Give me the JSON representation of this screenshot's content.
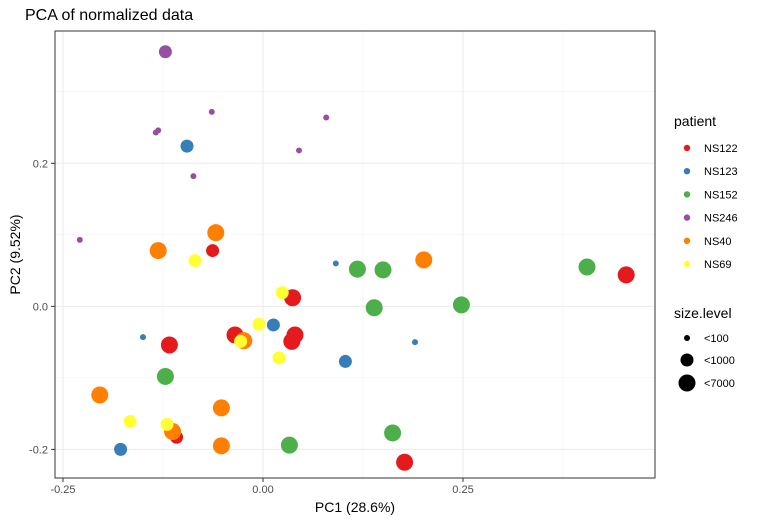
{
  "chart_data": {
    "type": "scatter",
    "title": "PCA of normalized data",
    "xlabel": "PC1 (28.6%)",
    "ylabel": "PC2 (9.52%)",
    "xlim": [
      -0.26,
      0.49
    ],
    "ylim": [
      -0.24,
      0.385
    ],
    "x_ticks": [
      -0.25,
      0.0,
      0.25
    ],
    "x_tick_labels": [
      "-0.25",
      "0.00",
      "0.25"
    ],
    "y_ticks": [
      -0.2,
      0.0,
      0.2
    ],
    "y_tick_labels": [
      "-0.2",
      "0.0",
      "0.2"
    ],
    "grid": true,
    "legend_placement": "right",
    "color_legend": {
      "title": "patient",
      "entries": [
        {
          "name": "NS122",
          "color": "#E41A1C"
        },
        {
          "name": "NS123",
          "color": "#377EB8"
        },
        {
          "name": "NS152",
          "color": "#4DAF4A"
        },
        {
          "name": "NS246",
          "color": "#984EA3"
        },
        {
          "name": "NS40",
          "color": "#FF7F00"
        },
        {
          "name": "NS69",
          "color": "#FFFF33"
        }
      ]
    },
    "size_legend": {
      "title": "size.level",
      "entries": [
        "<100",
        "<1000",
        "<7000"
      ]
    },
    "series": [
      {
        "name": "NS122",
        "points": [
          {
            "x": -0.063,
            "y": 0.078,
            "size": "<1000"
          },
          {
            "x": 0.037,
            "y": 0.012,
            "size": "<7000"
          },
          {
            "x": -0.035,
            "y": -0.04,
            "size": "<7000"
          },
          {
            "x": 0.04,
            "y": -0.04,
            "size": "<7000"
          },
          {
            "x": 0.036,
            "y": -0.049,
            "size": "<7000"
          },
          {
            "x": -0.117,
            "y": -0.054,
            "size": "<7000"
          },
          {
            "x": -0.108,
            "y": -0.183,
            "size": "<1000"
          },
          {
            "x": 0.177,
            "y": -0.218,
            "size": "<7000"
          },
          {
            "x": 0.454,
            "y": 0.044,
            "size": "<7000"
          }
        ]
      },
      {
        "name": "NS123",
        "points": [
          {
            "x": -0.095,
            "y": 0.224,
            "size": "<1000"
          },
          {
            "x": 0.091,
            "y": 0.06,
            "size": "<100"
          },
          {
            "x": -0.15,
            "y": -0.043,
            "size": "<100"
          },
          {
            "x": 0.013,
            "y": -0.026,
            "size": "<1000"
          },
          {
            "x": 0.103,
            "y": -0.077,
            "size": "<1000"
          },
          {
            "x": 0.19,
            "y": -0.05,
            "size": "<100"
          },
          {
            "x": -0.057,
            "y": -0.14,
            "size": "<100"
          },
          {
            "x": -0.178,
            "y": -0.2,
            "size": "<1000"
          }
        ]
      },
      {
        "name": "NS152",
        "points": [
          {
            "x": 0.118,
            "y": 0.052,
            "size": "<7000"
          },
          {
            "x": 0.15,
            "y": 0.051,
            "size": "<7000"
          },
          {
            "x": 0.139,
            "y": -0.002,
            "size": "<7000"
          },
          {
            "x": 0.248,
            "y": 0.002,
            "size": "<7000"
          },
          {
            "x": 0.405,
            "y": 0.055,
            "size": "<7000"
          },
          {
            "x": -0.122,
            "y": -0.098,
            "size": "<7000"
          },
          {
            "x": 0.162,
            "y": -0.177,
            "size": "<7000"
          },
          {
            "x": 0.033,
            "y": -0.194,
            "size": "<7000"
          }
        ]
      },
      {
        "name": "NS246",
        "points": [
          {
            "x": -0.122,
            "y": 0.356,
            "size": "<1000"
          },
          {
            "x": -0.064,
            "y": 0.272,
            "size": "<100"
          },
          {
            "x": 0.079,
            "y": 0.264,
            "size": "<100"
          },
          {
            "x": -0.131,
            "y": 0.246,
            "size": "<100"
          },
          {
            "x": -0.134,
            "y": 0.243,
            "size": "<100"
          },
          {
            "x": 0.045,
            "y": 0.218,
            "size": "<100"
          },
          {
            "x": -0.087,
            "y": 0.182,
            "size": "<100"
          },
          {
            "x": -0.229,
            "y": 0.093,
            "size": "<100"
          }
        ]
      },
      {
        "name": "NS40",
        "points": [
          {
            "x": -0.059,
            "y": 0.103,
            "size": "<7000"
          },
          {
            "x": -0.131,
            "y": 0.078,
            "size": "<7000"
          },
          {
            "x": 0.201,
            "y": 0.065,
            "size": "<7000"
          },
          {
            "x": -0.024,
            "y": -0.048,
            "size": "<7000"
          },
          {
            "x": -0.204,
            "y": -0.124,
            "size": "<7000"
          },
          {
            "x": -0.052,
            "y": -0.142,
            "size": "<7000"
          },
          {
            "x": -0.113,
            "y": -0.175,
            "size": "<7000"
          },
          {
            "x": -0.052,
            "y": -0.195,
            "size": "<7000"
          }
        ]
      },
      {
        "name": "NS69",
        "points": [
          {
            "x": -0.085,
            "y": 0.064,
            "size": "<1000"
          },
          {
            "x": 0.024,
            "y": 0.019,
            "size": "<1000"
          },
          {
            "x": -0.005,
            "y": -0.025,
            "size": "<1000"
          },
          {
            "x": -0.028,
            "y": -0.049,
            "size": "<1000"
          },
          {
            "x": 0.02,
            "y": -0.072,
            "size": "<1000"
          },
          {
            "x": -0.166,
            "y": -0.161,
            "size": "<1000"
          },
          {
            "x": -0.12,
            "y": -0.165,
            "size": "<1000"
          }
        ]
      }
    ]
  }
}
